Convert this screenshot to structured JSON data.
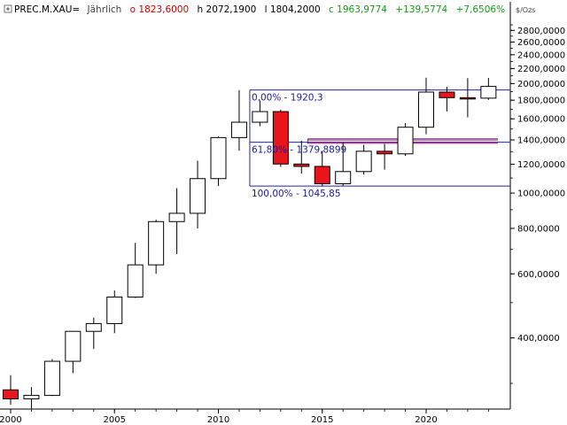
{
  "header": {
    "symbol": "PREC.M.XAU=",
    "period": "Jährlich",
    "open": "o 1823,6000",
    "high": "h 2072,1900",
    "low": "l 1804,2000",
    "close": "c 1963,9774",
    "change": "+139,5774",
    "change_pct": "+7,6506%"
  },
  "colors": {
    "up_candle": "#ffffff",
    "down_candle": "#e8151b",
    "candle_stroke": "#000000",
    "fib_line": "#2020b0",
    "fib_text": "#1a1aa0",
    "resistance_line": "#cc3b6b",
    "header_open": "#cc0000",
    "header_change": "#1a9a1a"
  },
  "chart_data": {
    "type": "candlestick",
    "y_unit": "$/Ozs",
    "y_scale": "log",
    "ylim": [
      255,
      3000
    ],
    "x_ticks": [
      "2000",
      "2005",
      "2010",
      "2015",
      "2020"
    ],
    "y_ticks": [
      "2800,0000",
      "2600,0000",
      "2400,0000",
      "2200,0000",
      "2000,0000",
      "1800,0000",
      "1600,0000",
      "1400,0000",
      "1200,0000",
      "1000,0000",
      "800,0000",
      "600,0000",
      "400,0000"
    ],
    "candles": [
      {
        "year": 2000,
        "open": 288,
        "high": 316,
        "low": 262,
        "close": 272
      },
      {
        "year": 2001,
        "open": 272,
        "high": 293,
        "low": 256,
        "close": 278
      },
      {
        "year": 2002,
        "open": 278,
        "high": 350,
        "low": 277,
        "close": 345
      },
      {
        "year": 2003,
        "open": 345,
        "high": 418,
        "low": 320,
        "close": 417
      },
      {
        "year": 2004,
        "open": 417,
        "high": 455,
        "low": 373,
        "close": 438
      },
      {
        "year": 2005,
        "open": 438,
        "high": 540,
        "low": 412,
        "close": 518
      },
      {
        "year": 2006,
        "open": 518,
        "high": 730,
        "low": 515,
        "close": 635
      },
      {
        "year": 2007,
        "open": 635,
        "high": 845,
        "low": 600,
        "close": 835
      },
      {
        "year": 2008,
        "open": 835,
        "high": 1032,
        "low": 680,
        "close": 880
      },
      {
        "year": 2009,
        "open": 880,
        "high": 1227,
        "low": 800,
        "close": 1096
      },
      {
        "year": 2010,
        "open": 1096,
        "high": 1431,
        "low": 1045,
        "close": 1421
      },
      {
        "year": 2011,
        "open": 1421,
        "high": 1920,
        "low": 1308,
        "close": 1566
      },
      {
        "year": 2012,
        "open": 1566,
        "high": 1796,
        "low": 1527,
        "close": 1675
      },
      {
        "year": 2013,
        "open": 1675,
        "high": 1696,
        "low": 1180,
        "close": 1202
      },
      {
        "year": 2014,
        "open": 1202,
        "high": 1392,
        "low": 1131,
        "close": 1184
      },
      {
        "year": 2015,
        "open": 1184,
        "high": 1307,
        "low": 1046,
        "close": 1061
      },
      {
        "year": 2016,
        "open": 1061,
        "high": 1375,
        "low": 1046,
        "close": 1146
      },
      {
        "year": 2017,
        "open": 1146,
        "high": 1357,
        "low": 1124,
        "close": 1303
      },
      {
        "year": 2018,
        "open": 1303,
        "high": 1366,
        "low": 1160,
        "close": 1282
      },
      {
        "year": 2019,
        "open": 1282,
        "high": 1557,
        "low": 1266,
        "close": 1517
      },
      {
        "year": 2020,
        "open": 1517,
        "high": 2075,
        "low": 1451,
        "close": 1895
      },
      {
        "year": 2021,
        "open": 1895,
        "high": 1959,
        "low": 1677,
        "close": 1829
      },
      {
        "year": 2022,
        "open": 1829,
        "high": 2070,
        "low": 1615,
        "close": 1824
      },
      {
        "year": 2023,
        "open": 1823.6,
        "high": 2072.19,
        "low": 1804.2,
        "close": 1963.9774
      }
    ],
    "fibonacci": [
      {
        "label": "0,00% - 1920,3",
        "price": 1920.3,
        "start_year": 2011
      },
      {
        "label": "61,80% - 1379,8899",
        "price": 1379.8899,
        "start_year": 2011
      },
      {
        "label": "100,00% - 1045,85",
        "price": 1045.85,
        "start_year": 2011
      }
    ],
    "resistance_lines": [
      1400,
      1372
    ],
    "resistance_start_year": 2014
  }
}
